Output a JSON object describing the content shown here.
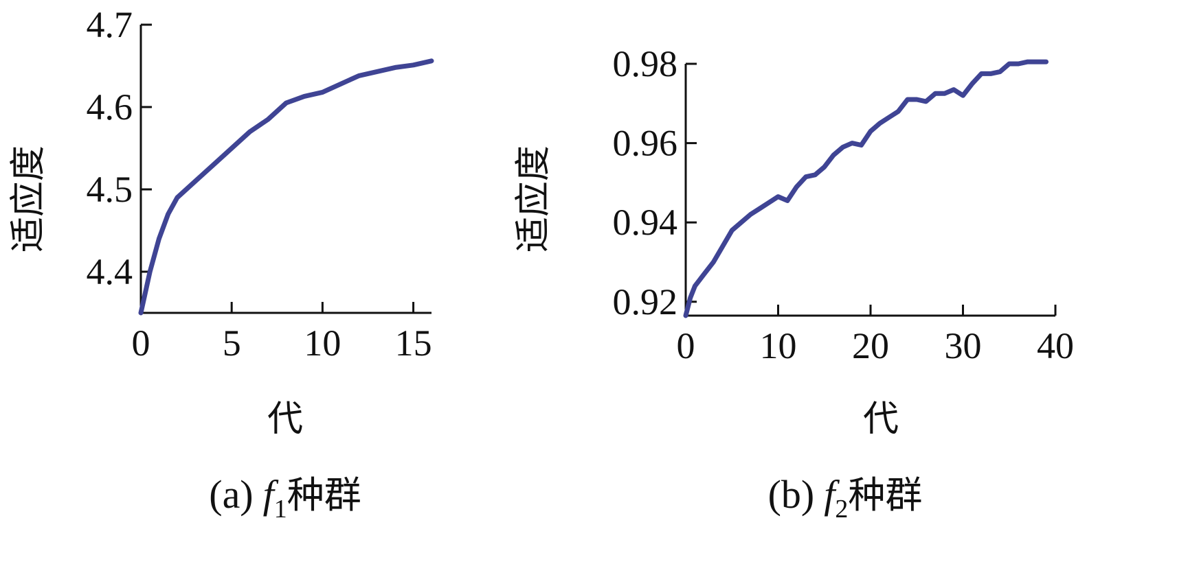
{
  "chart_data": [
    {
      "type": "line",
      "panel_label": "(a)",
      "caption_func": "f",
      "caption_sub": "1",
      "caption_text": "种群",
      "xlabel": "代",
      "ylabel": "适应度",
      "xlim": [
        0,
        16
      ],
      "ylim": [
        4.35,
        4.7
      ],
      "xticks": [
        0,
        5,
        10,
        15
      ],
      "xtick_labels": [
        "0",
        "5",
        "10",
        "15"
      ],
      "yticks": [
        4.4,
        4.5,
        4.6,
        4.7
      ],
      "ytick_labels": [
        "4.4",
        "4.5",
        "4.6",
        "4.7"
      ],
      "color": "#3f4494",
      "series": [
        {
          "x": [
            0,
            0.2,
            0.5,
            1.0,
            1.5,
            2.0,
            3.0,
            4.0,
            5.0,
            6.0,
            7.0,
            8.0,
            9.0,
            10.0,
            11.0,
            12.0,
            13.0,
            14.0,
            15.0,
            16.0
          ],
          "y": [
            4.35,
            4.37,
            4.4,
            4.44,
            4.47,
            4.49,
            4.51,
            4.53,
            4.55,
            4.57,
            4.585,
            4.605,
            4.613,
            4.618,
            4.628,
            4.638,
            4.643,
            4.648,
            4.651,
            4.656
          ]
        }
      ]
    },
    {
      "type": "line",
      "panel_label": "(b)",
      "caption_func": "f",
      "caption_sub": "2",
      "caption_text": "种群",
      "xlabel": "代",
      "ylabel": "适应度",
      "xlim": [
        0,
        40
      ],
      "ylim": [
        0.9165,
        0.98
      ],
      "xticks": [
        0,
        10,
        20,
        30,
        40
      ],
      "xtick_labels": [
        "0",
        "10",
        "20",
        "30",
        "40"
      ],
      "yticks": [
        0.92,
        0.94,
        0.96,
        0.98
      ],
      "ytick_labels": [
        "0.92",
        "0.94",
        "0.96",
        "0.98"
      ],
      "color": "#3f4494",
      "series": [
        {
          "x": [
            0,
            0.5,
            1,
            2,
            3,
            4,
            5,
            6,
            7,
            8,
            9,
            10,
            11,
            12,
            13,
            14,
            15,
            16,
            17,
            18,
            19,
            20,
            21,
            22,
            23,
            24,
            25,
            26,
            27,
            28,
            29,
            30,
            31,
            32,
            33,
            34,
            35,
            36,
            37,
            38,
            39
          ],
          "y": [
            0.9165,
            0.921,
            0.924,
            0.927,
            0.93,
            0.934,
            0.938,
            0.94,
            0.942,
            0.9435,
            0.945,
            0.9465,
            0.9455,
            0.949,
            0.9515,
            0.952,
            0.954,
            0.957,
            0.959,
            0.96,
            0.9595,
            0.963,
            0.965,
            0.9665,
            0.968,
            0.971,
            0.971,
            0.9705,
            0.9725,
            0.9725,
            0.9735,
            0.972,
            0.975,
            0.9775,
            0.9775,
            0.978,
            0.98,
            0.98,
            0.9805,
            0.9805,
            0.9805
          ]
        }
      ]
    }
  ]
}
